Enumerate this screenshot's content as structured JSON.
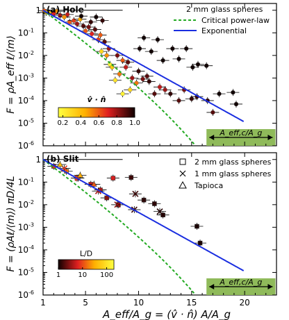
{
  "figure": {
    "xlabel": "A_eff/A_g = (v̂ · n̂) A/A_g",
    "x_ticks": [
      "1",
      "5",
      "10",
      "15",
      "20"
    ]
  },
  "chart_data": [
    {
      "type": "scatter",
      "panel_label": "(a) Hole",
      "ylabel": "F = ρA_eff ℓ/⟨m⟩",
      "xlim": [
        1,
        23
      ],
      "ylim_log10": [
        -6,
        0.3
      ],
      "y_scale": "log",
      "y_ticks": [
        "10^-6",
        "10^-5",
        "10^-4",
        "10^-3",
        "10^-2",
        "10^-1",
        "1"
      ],
      "legend": {
        "title": "2 mm glass spheres",
        "entries": [
          {
            "label": "Critical power-law",
            "color": "#22aa22",
            "style": "dashed"
          },
          {
            "label": "Exponential",
            "color": "#1a2ee0",
            "style": "solid"
          }
        ]
      },
      "colorbar": {
        "label": "v̂ · n̂",
        "ticks": [
          "0.2",
          "0.4",
          "0.6",
          "0.8",
          "1.0"
        ],
        "range": [
          0.15,
          1.0
        ]
      },
      "box_label": "A_eff,c/A_g",
      "series": [
        {
          "marker": "circle",
          "points": [
            {
              "x": 1.1,
              "y": 0.95,
              "c": 0.6
            },
            {
              "x": 1.3,
              "y": 0.8,
              "c": 0.3
            },
            {
              "x": 1.6,
              "y": 0.75,
              "c": 0.4
            },
            {
              "x": 2,
              "y": 0.7,
              "c": 0.7
            },
            {
              "x": 2.3,
              "y": 0.9,
              "c": 0.5
            },
            {
              "x": 2.6,
              "y": 0.6,
              "c": 0.8
            },
            {
              "x": 3,
              "y": 0.5,
              "c": 0.5
            },
            {
              "x": 3.3,
              "y": 0.65,
              "c": 0.75
            },
            {
              "x": 3.5,
              "y": 0.3,
              "c": 0.6
            },
            {
              "x": 3.9,
              "y": 0.35,
              "c": 0.65
            },
            {
              "x": 4.2,
              "y": 0.25,
              "c": 0.8
            },
            {
              "x": 4.5,
              "y": 0.4,
              "c": 0.45
            },
            {
              "x": 4.8,
              "y": 0.2,
              "c": 0.9
            },
            {
              "x": 5,
              "y": 0.12,
              "c": 0.6
            },
            {
              "x": 5.3,
              "y": 0.18,
              "c": 0.85
            },
            {
              "x": 5.5,
              "y": 0.3,
              "c": 0.95
            },
            {
              "x": 5.6,
              "y": 0.09,
              "c": 0.7
            },
            {
              "x": 5.9,
              "y": 0.14,
              "c": 0.9
            },
            {
              "x": 6.2,
              "y": 0.05,
              "c": 0.65
            },
            {
              "x": 6.4,
              "y": 0.08,
              "c": 0.6
            },
            {
              "x": 6.5,
              "y": 0.015,
              "c": 0.3
            },
            {
              "x": 6.8,
              "y": 0.04,
              "c": 0.9
            },
            {
              "x": 7,
              "y": 0.01,
              "c": 0.5
            },
            {
              "x": 7.2,
              "y": 0.02,
              "c": 0.8
            },
            {
              "x": 7.3,
              "y": 0.004,
              "c": 0.2
            },
            {
              "x": 7.5,
              "y": 0.003,
              "c": 0.35
            },
            {
              "x": 7.8,
              "y": 0.0008,
              "c": 0.25
            },
            {
              "x": 8,
              "y": 0.01,
              "c": 0.85
            },
            {
              "x": 8.2,
              "y": 0.0015,
              "c": 0.55
            },
            {
              "x": 8.5,
              "y": 0.006,
              "c": 0.6
            },
            {
              "x": 8.5,
              "y": 0.0002,
              "c": 0.2
            },
            {
              "x": 8.8,
              "y": 0.003,
              "c": 0.75
            },
            {
              "x": 9,
              "y": 0.005,
              "c": 0.9
            },
            {
              "x": 9.2,
              "y": 0.0003,
              "c": 0.3
            },
            {
              "x": 9.4,
              "y": 0.001,
              "c": 0.8
            },
            {
              "x": 9.8,
              "y": 0.0006,
              "c": 0.55
            },
            {
              "x": 10,
              "y": 0.002,
              "c": 0.95
            },
            {
              "x": 10.4,
              "y": 0.0009,
              "c": 0.85
            },
            {
              "x": 10.8,
              "y": 0.0012,
              "c": 0.9
            },
            {
              "x": 11,
              "y": 0.0007,
              "c": 0.95
            },
            {
              "x": 11.5,
              "y": 0.0002,
              "c": 0.9
            },
            {
              "x": 12,
              "y": 0.0004,
              "c": 0.75
            },
            {
              "x": 12.5,
              "y": 0.0003,
              "c": 0.8
            },
            {
              "x": 13,
              "y": 0.0002,
              "c": 0.95
            },
            {
              "x": 13.8,
              "y": 0.0001,
              "c": 0.9
            },
            {
              "x": 14.3,
              "y": 0.0003,
              "c": 0.85
            },
            {
              "x": 15,
              "y": 0.00012,
              "c": 0.95
            },
            {
              "x": 15.5,
              "y": 0.00015,
              "c": 0.95
            },
            {
              "x": 16.5,
              "y": 0.0001,
              "c": 0.95
            },
            {
              "x": 17,
              "y": 3e-05,
              "c": 0.9
            },
            {
              "x": 4.6,
              "y": 0.55,
              "c": 1.0
            },
            {
              "x": 6,
              "y": 0.5,
              "c": 1.0
            },
            {
              "x": 6.6,
              "y": 0.35,
              "c": 0.95
            },
            {
              "x": 10.1,
              "y": 0.02,
              "c": 1.0
            },
            {
              "x": 10.5,
              "y": 0.06,
              "c": 1.0
            },
            {
              "x": 11.2,
              "y": 0.015,
              "c": 1.0
            },
            {
              "x": 11.8,
              "y": 0.05,
              "c": 1.0
            },
            {
              "x": 12.3,
              "y": 0.006,
              "c": 1.0
            },
            {
              "x": 13.2,
              "y": 0.02,
              "c": 1.0
            },
            {
              "x": 13.8,
              "y": 0.007,
              "c": 1.0
            },
            {
              "x": 14.5,
              "y": 0.02,
              "c": 1.0
            },
            {
              "x": 15.1,
              "y": 0.003,
              "c": 1.0
            },
            {
              "x": 15.6,
              "y": 0.004,
              "c": 1.0
            },
            {
              "x": 16.4,
              "y": 0.0035,
              "c": 1.0
            },
            {
              "x": 17.6,
              "y": 0.0002,
              "c": 1.0
            },
            {
              "x": 18.9,
              "y": 0.00023,
              "c": 1.0
            },
            {
              "x": 19.2,
              "y": 7e-05,
              "c": 1.0
            }
          ]
        }
      ],
      "curves": {
        "exponential": {
          "F0": 1.0,
          "decay": 0.6
        },
        "power_law": {
          "F0": 1.0,
          "decay": 0.6,
          "xc": 22
        }
      }
    },
    {
      "type": "scatter",
      "panel_label": "(b) Slit",
      "ylabel": "F = (ρAℓ/⟨m⟩) πD/4L",
      "xlim": [
        1,
        23
      ],
      "ylim_log10": [
        -6,
        0.3
      ],
      "y_scale": "log",
      "y_ticks": [
        "10^-6",
        "10^-5",
        "10^-4",
        "10^-3",
        "10^-2",
        "10^-1",
        "1"
      ],
      "legend": {
        "entries": [
          {
            "label": "2 mm glass spheres",
            "marker": "square"
          },
          {
            "label": "1 mm glass spheres",
            "marker": "x"
          },
          {
            "label": "Tapioca",
            "marker": "triangle"
          }
        ]
      },
      "colorbar": {
        "label": "L/D",
        "ticks": [
          "1",
          "10",
          "100"
        ],
        "range": [
          1,
          200
        ],
        "scale": "log"
      },
      "box_label": "A_eff,c/A_g",
      "series": [
        {
          "name": "2 mm glass spheres",
          "marker": "square",
          "points": [
            {
              "x": 2,
              "y": 0.5,
              "c": 8
            },
            {
              "x": 3.2,
              "y": 0.3,
              "c": 20
            },
            {
              "x": 4.2,
              "y": 0.15,
              "c": 10
            },
            {
              "x": 5.5,
              "y": 0.08,
              "c": 5
            },
            {
              "x": 6.4,
              "y": 0.045,
              "c": 4
            },
            {
              "x": 7,
              "y": 0.02,
              "c": 3
            },
            {
              "x": 7.6,
              "y": 0.15,
              "c": 6
            },
            {
              "x": 8.1,
              "y": 0.01,
              "c": 3
            },
            {
              "x": 9.3,
              "y": 0.16,
              "c": 1.5
            },
            {
              "x": 10.5,
              "y": 0.016,
              "c": 1.3
            },
            {
              "x": 11.5,
              "y": 0.011,
              "c": 1.3
            },
            {
              "x": 12.3,
              "y": 0.0035,
              "c": 1.2
            },
            {
              "x": 15.5,
              "y": 0.0011,
              "c": 1.1
            },
            {
              "x": 15.8,
              "y": 0.0002,
              "c": 1.1
            }
          ]
        },
        {
          "name": "1 mm glass spheres",
          "marker": "x",
          "points": [
            {
              "x": 3,
              "y": 0.4,
              "c": 8
            },
            {
              "x": 4.3,
              "y": 0.15,
              "c": 8
            },
            {
              "x": 6.2,
              "y": 0.04,
              "c": 4
            },
            {
              "x": 8,
              "y": 0.01,
              "c": 3
            },
            {
              "x": 9.7,
              "y": 0.03,
              "c": 1.5
            },
            {
              "x": 9.6,
              "y": 0.006,
              "c": 1.5
            },
            {
              "x": 12,
              "y": 0.005,
              "c": 1.2
            }
          ]
        },
        {
          "name": "Tapioca",
          "marker": "triangle",
          "points": [
            {
              "x": 2.6,
              "y": 0.6,
              "c": 40
            },
            {
              "x": 4.5,
              "y": 0.2,
              "c": 30
            },
            {
              "x": 5.8,
              "y": 0.08,
              "c": 12
            }
          ]
        }
      ],
      "curves": {
        "exponential": {
          "F0": 1.0,
          "decay": 0.6
        },
        "power_law": {
          "F0": 1.0,
          "decay": 0.6,
          "xc": 22
        }
      }
    }
  ],
  "colors": {
    "exponential": "#1a2ee0",
    "power_law": "#22aa22",
    "green_box": "#8fba5a"
  }
}
